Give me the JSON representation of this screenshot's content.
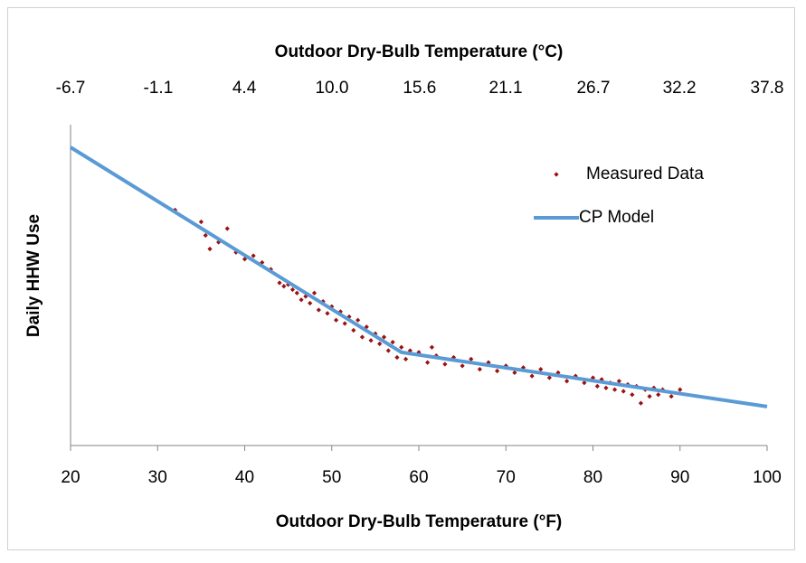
{
  "chart_data": {
    "type": "scatter",
    "xlabel": "Outdoor Dry-Bulb Temperature (°F)",
    "x2label": "Outdoor Dry-Bulb Temperature (°C)",
    "ylabel": "Daily HHW Use",
    "xlim": [
      20,
      100
    ],
    "xticks": [
      20,
      30,
      40,
      50,
      60,
      70,
      80,
      90,
      100
    ],
    "x2lim": [
      -6.7,
      37.8
    ],
    "x2ticks": [
      -6.7,
      -1.1,
      4.4,
      {
        "value": 10,
        "label": "10.0"
      },
      15.6,
      21.1,
      26.7,
      32.2,
      37.8
    ],
    "ylim": [
      0,
      100
    ],
    "legend": "upper-right",
    "series": [
      {
        "name": "Measured Data",
        "type": "scatter",
        "color": "#9b1111",
        "x": [
          32,
          35,
          35.5,
          36,
          37,
          38,
          39,
          40,
          41,
          42,
          43,
          44,
          44.5,
          45,
          45.5,
          46,
          46.5,
          47,
          47.5,
          48,
          48.5,
          49,
          49.5,
          50,
          50.5,
          51,
          51.5,
          52,
          52.5,
          53,
          53.5,
          54,
          54.5,
          55,
          55.5,
          56,
          56.5,
          57,
          57.5,
          58,
          58.5,
          59,
          60,
          61,
          61.5,
          62,
          63,
          64,
          65,
          66,
          67,
          68,
          69,
          70,
          71,
          72,
          73,
          74,
          75,
          76,
          77,
          78,
          79,
          80,
          80.5,
          81,
          81.5,
          82,
          82.5,
          83,
          83.5,
          84,
          84.5,
          85,
          85.5,
          86,
          86.5,
          87,
          87.5,
          88,
          89,
          90
        ],
        "values": [
          69.5,
          66,
          62,
          58,
          60,
          64,
          57,
          55,
          56,
          54,
          52,
          48,
          47,
          47.5,
          46,
          45,
          43,
          44,
          42,
          45,
          40,
          42.5,
          39,
          41,
          37,
          39.5,
          36,
          38,
          34,
          37,
          32,
          35,
          31,
          33,
          30,
          32,
          28,
          30.5,
          26,
          29,
          25.5,
          28,
          27.5,
          24.5,
          29,
          26.5,
          24,
          26,
          23.5,
          25.5,
          22.5,
          24.5,
          22,
          23.5,
          21.5,
          23,
          20.5,
          22.5,
          20,
          21.5,
          19,
          20.5,
          18.5,
          20,
          17.5,
          19.5,
          17,
          18.5,
          16.5,
          19,
          16,
          18,
          15,
          17.5,
          12.5,
          16.5,
          14.5,
          17,
          15,
          16.5,
          14.5,
          16.5
        ]
      },
      {
        "name": "CP Model",
        "type": "line",
        "color": "#5b9bd5",
        "x": [
          20,
          58,
          100
        ],
        "values": [
          88,
          27.5,
          11.5
        ]
      }
    ]
  }
}
